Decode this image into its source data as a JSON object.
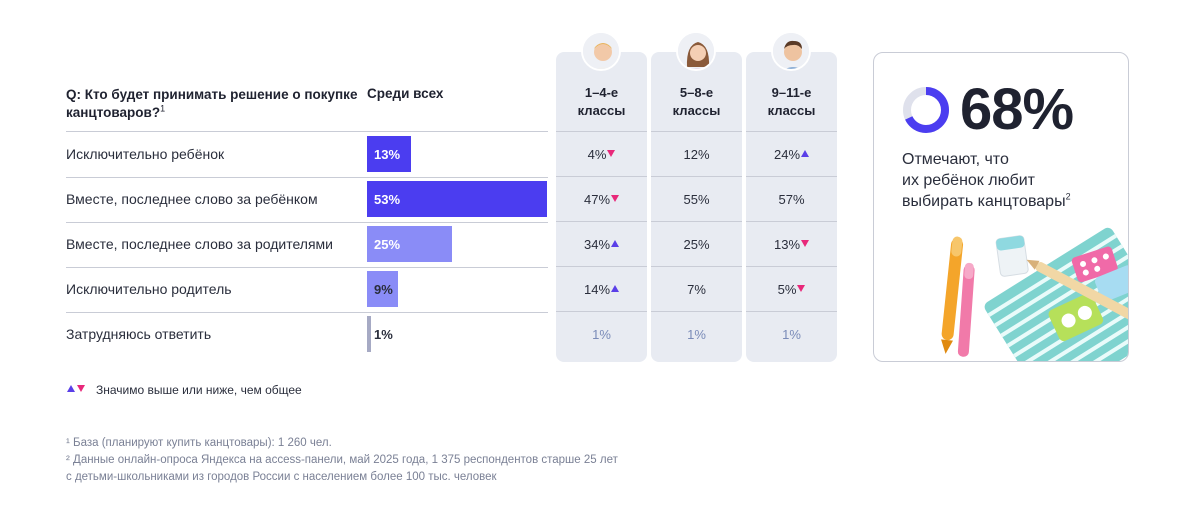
{
  "question": {
    "text": "Q: Кто будет принимать решение о покупке канцтоваров?",
    "footnote_mark": "1"
  },
  "all_header": "Среди всех",
  "chart_data": {
    "type": "bar",
    "title": "Q: Кто будет принимать решение о покупке канцтоваров?",
    "categories": [
      "Исключительно ребёнок",
      "Вместе, последнее слово за ребёнком",
      "Вместе, последнее слово за родителями",
      "Исключительно родитель",
      "Затрудняюсь ответить"
    ],
    "series": [
      {
        "name": "Среди всех",
        "values": [
          13,
          53,
          25,
          9,
          1
        ],
        "labels": [
          "13%",
          "53%",
          "25%",
          "9%",
          "1%"
        ],
        "colors": [
          "#4b3df0",
          "#4b3df0",
          "#8a8cf7",
          "#8a8cf7",
          "#a6aac4"
        ]
      }
    ],
    "xlim": [
      0,
      53
    ]
  },
  "groups": [
    {
      "title_line1": "1–4-е",
      "title_line2": "классы",
      "avatar": "boy-avatar-icon",
      "values": [
        "4%",
        "47%",
        "34%",
        "14%",
        "1%"
      ],
      "marks": [
        "down",
        "down",
        "up",
        "up",
        ""
      ]
    },
    {
      "title_line1": "5–8-е",
      "title_line2": "классы",
      "avatar": "girl-avatar-icon",
      "values": [
        "12%",
        "55%",
        "25%",
        "7%",
        "1%"
      ],
      "marks": [
        "",
        "",
        "",
        "",
        ""
      ]
    },
    {
      "title_line1": "9–11-е",
      "title_line2": "классы",
      "avatar": "teen-avatar-icon",
      "values": [
        "24%",
        "57%",
        "13%",
        "5%",
        "1%"
      ],
      "marks": [
        "up",
        "",
        "down",
        "down",
        ""
      ]
    }
  ],
  "legend": {
    "text": "Значимо выше или ниже, чем общее",
    "up_color": "#5a3fe8",
    "down_color": "#e8287a"
  },
  "footnotes": [
    "¹ База (планируют купить канцтовары): 1 260 чел.",
    "² Данные онлайн-опроса Яндекса на access-панели, май 2025 года, 1 375 респондентов старше 25 лет",
    "с детьми-школьниками из городов России с населением более 100 тыс. человек"
  ],
  "card": {
    "big_value": "68%",
    "donut_fraction": 0.68,
    "text_line1": "Отмечают, что",
    "text_line2": "их ребёнок любит",
    "text_line3": "выбирать канцтовары",
    "text_mark": "2",
    "accent": "#4b3df0"
  }
}
